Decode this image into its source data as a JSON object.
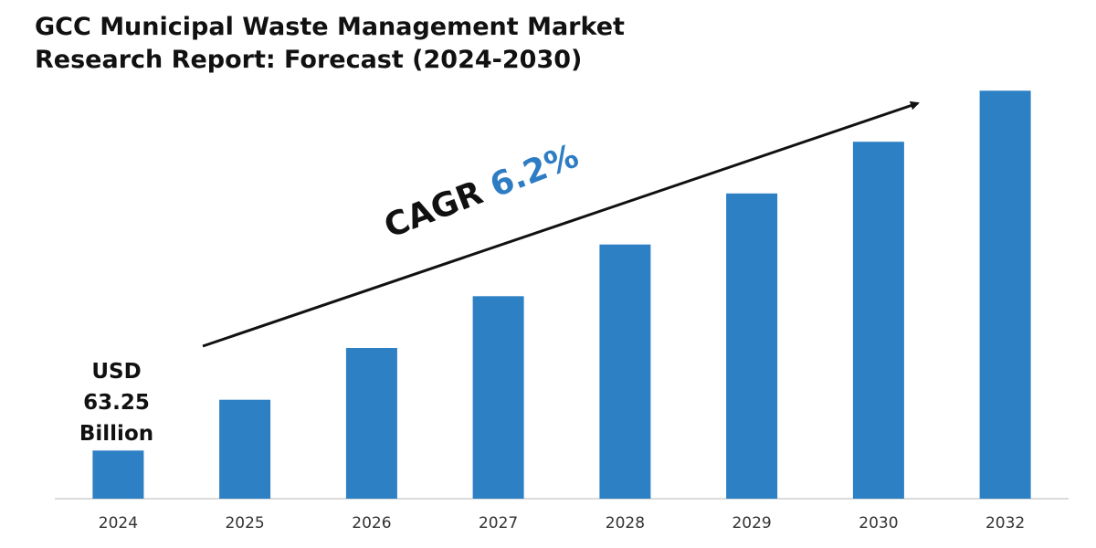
{
  "chart_data": {
    "type": "bar",
    "title": "GCC Municipal Waste Management Market Research Report: Forecast (2024-2030)",
    "categories": [
      "2024",
      "2025",
      "2026",
      "2027",
      "2028",
      "2029",
      "2030",
      "2032"
    ],
    "values": [
      63.25,
      130,
      198,
      266,
      334,
      401,
      469,
      536
    ],
    "ylim": [
      0,
      600
    ],
    "xlabel": "",
    "ylabel": "",
    "grid": false,
    "bar_color": "#2e80c4",
    "annotations": {
      "first_value_label": [
        "USD",
        "63.25",
        "Billion"
      ],
      "cagr_text": "CAGR",
      "cagr_value": "6.2%"
    }
  }
}
